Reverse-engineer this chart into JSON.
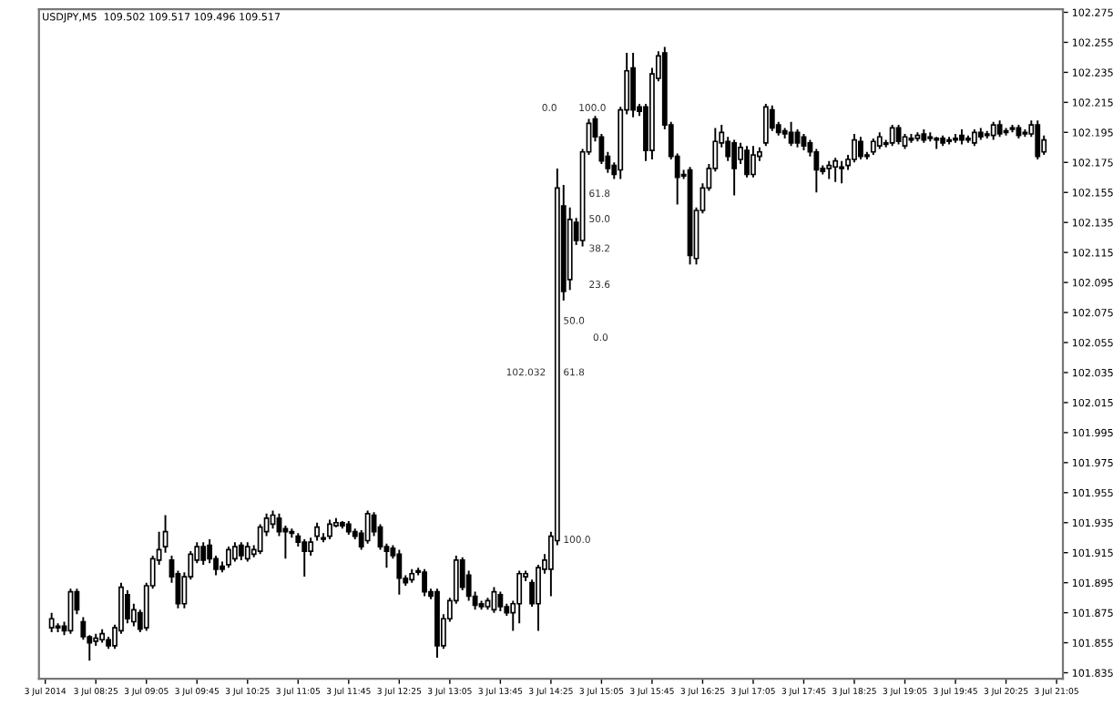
{
  "chart_data": {
    "type": "candlestick",
    "title": "USDJPY,M5  109.502 109.517 109.496 109.517",
    "x": [
      "2014-07-03T07:50",
      "2014-07-03T07:55",
      "2014-07-03T08:00",
      "2014-07-03T08:05",
      "2014-07-03T08:10",
      "2014-07-03T08:15",
      "2014-07-03T08:20",
      "2014-07-03T08:25",
      "2014-07-03T08:30",
      "2014-07-03T08:35",
      "2014-07-03T08:40",
      "2014-07-03T08:45",
      "2014-07-03T08:50",
      "2014-07-03T08:55",
      "2014-07-03T09:00",
      "2014-07-03T09:05",
      "2014-07-03T09:10",
      "2014-07-03T09:15",
      "2014-07-03T09:20",
      "2014-07-03T09:25",
      "2014-07-03T09:30",
      "2014-07-03T09:35",
      "2014-07-03T09:40",
      "2014-07-03T09:45",
      "2014-07-03T09:50",
      "2014-07-03T09:55",
      "2014-07-03T10:00",
      "2014-07-03T10:05",
      "2014-07-03T10:10",
      "2014-07-03T10:15",
      "2014-07-03T10:20",
      "2014-07-03T10:25",
      "2014-07-03T10:30",
      "2014-07-03T10:35",
      "2014-07-03T10:40",
      "2014-07-03T10:45",
      "2014-07-03T10:50",
      "2014-07-03T10:55",
      "2014-07-03T11:00",
      "2014-07-03T11:05",
      "2014-07-03T11:10",
      "2014-07-03T11:15",
      "2014-07-03T11:20",
      "2014-07-03T11:25",
      "2014-07-03T11:30",
      "2014-07-03T11:35",
      "2014-07-03T11:40",
      "2014-07-03T11:45",
      "2014-07-03T11:50",
      "2014-07-03T11:55",
      "2014-07-03T12:00",
      "2014-07-03T12:05",
      "2014-07-03T12:10",
      "2014-07-03T12:15",
      "2014-07-03T12:20",
      "2014-07-03T12:25",
      "2014-07-03T12:30",
      "2014-07-03T12:35",
      "2014-07-03T12:40",
      "2014-07-03T12:45",
      "2014-07-03T12:50",
      "2014-07-03T12:55",
      "2014-07-03T13:00",
      "2014-07-03T13:05",
      "2014-07-03T13:10",
      "2014-07-03T13:15",
      "2014-07-03T13:20",
      "2014-07-03T13:25",
      "2014-07-03T13:30",
      "2014-07-03T13:35",
      "2014-07-03T13:40",
      "2014-07-03T13:45",
      "2014-07-03T13:50",
      "2014-07-03T13:55",
      "2014-07-03T14:00",
      "2014-07-03T14:05",
      "2014-07-03T14:10",
      "2014-07-03T14:15",
      "2014-07-03T14:20",
      "2014-07-03T14:25",
      "2014-07-03T14:30",
      "2014-07-03T14:35",
      "2014-07-03T14:40",
      "2014-07-03T14:45",
      "2014-07-03T14:50",
      "2014-07-03T14:55",
      "2014-07-03T15:00",
      "2014-07-03T15:05",
      "2014-07-03T15:10",
      "2014-07-03T15:15",
      "2014-07-03T15:20",
      "2014-07-03T15:25",
      "2014-07-03T15:30",
      "2014-07-03T15:35",
      "2014-07-03T15:40",
      "2014-07-03T15:45",
      "2014-07-03T15:50",
      "2014-07-03T15:55",
      "2014-07-03T16:00",
      "2014-07-03T16:05",
      "2014-07-03T16:10",
      "2014-07-03T16:15",
      "2014-07-03T16:20",
      "2014-07-03T16:25",
      "2014-07-03T16:30",
      "2014-07-03T16:35",
      "2014-07-03T16:40",
      "2014-07-03T16:45",
      "2014-07-03T16:50",
      "2014-07-03T16:55",
      "2014-07-03T17:00",
      "2014-07-03T17:05",
      "2014-07-03T17:10",
      "2014-07-03T17:15",
      "2014-07-03T17:20",
      "2014-07-03T17:25",
      "2014-07-03T17:30",
      "2014-07-03T17:35",
      "2014-07-03T17:40",
      "2014-07-03T17:45",
      "2014-07-03T17:50",
      "2014-07-03T17:55",
      "2014-07-03T18:00",
      "2014-07-03T18:05",
      "2014-07-03T18:10",
      "2014-07-03T18:15",
      "2014-07-03T18:20",
      "2014-07-03T18:25",
      "2014-07-03T18:30",
      "2014-07-03T18:35",
      "2014-07-03T18:40",
      "2014-07-03T18:45",
      "2014-07-03T18:50",
      "2014-07-03T18:55",
      "2014-07-03T19:00",
      "2014-07-03T19:05",
      "2014-07-03T19:10",
      "2014-07-03T19:15",
      "2014-07-03T19:20",
      "2014-07-03T19:25",
      "2014-07-03T19:30",
      "2014-07-03T19:35",
      "2014-07-03T19:40",
      "2014-07-03T19:45",
      "2014-07-03T19:50",
      "2014-07-03T19:55",
      "2014-07-03T20:00",
      "2014-07-03T20:05",
      "2014-07-03T20:10",
      "2014-07-03T20:15",
      "2014-07-03T20:20",
      "2014-07-03T20:25",
      "2014-07-03T20:30",
      "2014-07-03T20:35",
      "2014-07-03T20:40",
      "2014-07-03T20:45",
      "2014-07-03T20:50",
      "2014-07-03T20:55"
    ],
    "ohlc": [
      [
        101.865,
        101.875,
        101.862,
        101.871
      ],
      [
        101.865,
        101.868,
        101.862,
        101.866
      ],
      [
        101.866,
        101.869,
        101.86,
        101.863
      ],
      [
        101.863,
        101.891,
        101.861,
        101.889
      ],
      [
        101.889,
        101.891,
        101.874,
        101.877
      ],
      [
        101.869,
        101.872,
        101.857,
        101.859
      ],
      [
        101.859,
        101.86,
        101.843,
        101.855
      ],
      [
        101.856,
        101.861,
        101.853,
        101.858
      ],
      [
        101.857,
        101.864,
        101.855,
        101.861
      ],
      [
        101.857,
        101.859,
        101.851,
        101.853
      ],
      [
        101.853,
        101.867,
        101.851,
        101.865
      ],
      [
        101.863,
        101.895,
        101.861,
        101.892
      ],
      [
        101.887,
        101.89,
        101.868,
        101.871
      ],
      [
        101.869,
        101.881,
        101.866,
        101.877
      ],
      [
        101.875,
        101.877,
        101.862,
        101.864
      ],
      [
        101.865,
        101.895,
        101.863,
        101.893
      ],
      [
        101.893,
        101.913,
        101.891,
        101.911
      ],
      [
        101.91,
        101.929,
        101.907,
        101.917
      ],
      [
        101.919,
        101.94,
        101.915,
        101.929
      ],
      [
        101.91,
        101.913,
        101.895,
        101.899
      ],
      [
        101.901,
        101.903,
        101.878,
        101.881
      ],
      [
        101.881,
        101.902,
        101.878,
        101.899
      ],
      [
        101.899,
        101.916,
        101.897,
        101.914
      ],
      [
        101.91,
        101.922,
        101.908,
        101.919
      ],
      [
        101.919,
        101.922,
        101.907,
        101.91
      ],
      [
        101.92,
        101.924,
        101.908,
        101.911
      ],
      [
        101.911,
        101.913,
        101.9,
        101.904
      ],
      [
        101.906,
        101.909,
        101.902,
        101.904
      ],
      [
        101.907,
        101.919,
        101.905,
        101.917
      ],
      [
        101.911,
        101.922,
        101.909,
        101.919
      ],
      [
        101.92,
        101.922,
        101.91,
        101.913
      ],
      [
        101.911,
        101.922,
        101.909,
        101.919
      ],
      [
        101.914,
        101.92,
        101.912,
        101.917
      ],
      [
        101.916,
        101.934,
        101.914,
        101.932
      ],
      [
        101.929,
        101.941,
        101.926,
        101.938
      ],
      [
        101.934,
        101.943,
        101.931,
        101.94
      ],
      [
        101.938,
        101.941,
        101.926,
        101.929
      ],
      [
        101.931,
        101.933,
        101.911,
        101.929
      ],
      [
        101.929,
        101.931,
        101.925,
        101.928
      ],
      [
        101.926,
        101.928,
        101.919,
        101.922
      ],
      [
        101.922,
        101.924,
        101.899,
        101.916
      ],
      [
        101.916,
        101.925,
        101.913,
        101.922
      ],
      [
        101.926,
        101.935,
        101.923,
        101.932
      ],
      [
        101.925,
        101.928,
        101.922,
        101.924
      ],
      [
        101.926,
        101.937,
        101.924,
        101.934
      ],
      [
        101.933,
        101.938,
        101.932,
        101.935
      ],
      [
        101.935,
        101.936,
        101.931,
        101.933
      ],
      [
        101.934,
        101.936,
        101.927,
        101.929
      ],
      [
        101.929,
        101.931,
        101.924,
        101.926
      ],
      [
        101.928,
        101.93,
        101.917,
        101.919
      ],
      [
        101.923,
        101.943,
        101.921,
        101.941
      ],
      [
        101.94,
        101.942,
        101.926,
        101.929
      ],
      [
        101.932,
        101.934,
        101.917,
        101.919
      ],
      [
        101.919,
        101.921,
        101.905,
        101.916
      ],
      [
        101.918,
        101.92,
        101.911,
        101.913
      ],
      [
        101.914,
        101.917,
        101.887,
        101.898
      ],
      [
        101.898,
        101.9,
        101.893,
        101.895
      ],
      [
        101.897,
        101.904,
        101.895,
        101.901
      ],
      [
        101.902,
        101.905,
        101.9,
        101.903
      ],
      [
        101.902,
        101.904,
        101.886,
        101.889
      ],
      [
        101.889,
        101.891,
        101.884,
        101.886
      ],
      [
        101.889,
        101.891,
        101.845,
        101.853
      ],
      [
        101.853,
        101.874,
        101.851,
        101.871
      ],
      [
        101.871,
        101.885,
        101.869,
        101.883
      ],
      [
        101.883,
        101.913,
        101.881,
        101.91
      ],
      [
        101.91,
        101.912,
        101.89,
        101.892
      ],
      [
        101.9,
        101.903,
        101.883,
        101.886
      ],
      [
        101.886,
        101.889,
        101.877,
        101.88
      ],
      [
        101.881,
        101.883,
        101.877,
        101.879
      ],
      [
        101.879,
        101.885,
        101.877,
        101.883
      ],
      [
        101.877,
        101.892,
        101.875,
        101.889
      ],
      [
        101.887,
        101.889,
        101.876,
        101.879
      ],
      [
        101.879,
        101.881,
        101.873,
        101.875
      ],
      [
        101.875,
        101.883,
        101.863,
        101.881
      ],
      [
        101.881,
        101.903,
        101.868,
        101.901
      ],
      [
        101.899,
        101.903,
        101.896,
        101.901
      ],
      [
        101.895,
        101.897,
        101.879,
        101.881
      ],
      [
        101.881,
        101.907,
        101.863,
        101.905
      ],
      [
        101.904,
        101.914,
        101.901,
        101.91
      ],
      [
        101.904,
        101.929,
        101.886,
        101.926
      ],
      [
        101.923,
        102.171,
        101.92,
        102.158
      ],
      [
        102.146,
        102.16,
        102.083,
        102.089
      ],
      [
        102.097,
        102.145,
        102.09,
        102.137
      ],
      [
        102.135,
        102.138,
        102.12,
        102.123
      ],
      [
        102.123,
        102.184,
        102.119,
        102.182
      ],
      [
        102.182,
        102.204,
        102.18,
        102.201
      ],
      [
        102.204,
        102.206,
        102.189,
        102.192
      ],
      [
        102.192,
        102.194,
        102.174,
        102.176
      ],
      [
        102.179,
        102.182,
        102.168,
        102.171
      ],
      [
        102.173,
        102.175,
        102.164,
        102.167
      ],
      [
        102.17,
        102.212,
        102.164,
        102.21
      ],
      [
        102.21,
        102.248,
        102.207,
        102.236
      ],
      [
        102.238,
        102.248,
        102.205,
        102.21
      ],
      [
        102.212,
        102.214,
        102.206,
        102.209
      ],
      [
        102.212,
        102.214,
        102.176,
        102.183
      ],
      [
        102.183,
        102.238,
        102.177,
        102.234
      ],
      [
        102.231,
        102.249,
        102.229,
        102.246
      ],
      [
        102.248,
        102.252,
        102.197,
        102.2
      ],
      [
        102.2,
        102.202,
        102.177,
        102.179
      ],
      [
        102.179,
        102.181,
        102.147,
        102.165
      ],
      [
        102.167,
        102.17,
        102.164,
        102.166
      ],
      [
        102.17,
        102.172,
        102.107,
        102.113
      ],
      [
        102.111,
        102.145,
        102.107,
        102.143
      ],
      [
        102.143,
        102.161,
        102.141,
        102.158
      ],
      [
        102.158,
        102.174,
        102.156,
        102.171
      ],
      [
        102.171,
        102.198,
        102.169,
        102.189
      ],
      [
        102.188,
        102.2,
        102.185,
        102.195
      ],
      [
        102.189,
        102.192,
        102.176,
        102.179
      ],
      [
        102.188,
        102.19,
        102.153,
        102.171
      ],
      [
        102.177,
        102.188,
        102.174,
        102.185
      ],
      [
        102.183,
        102.186,
        102.165,
        102.167
      ],
      [
        102.167,
        102.186,
        102.165,
        102.18
      ],
      [
        102.179,
        102.185,
        102.176,
        102.182
      ],
      [
        102.188,
        102.214,
        102.186,
        102.212
      ],
      [
        102.21,
        102.213,
        102.196,
        102.198
      ],
      [
        102.2,
        102.202,
        102.193,
        102.195
      ],
      [
        102.196,
        102.198,
        102.191,
        102.194
      ],
      [
        102.195,
        102.202,
        102.186,
        102.188
      ],
      [
        102.195,
        102.197,
        102.185,
        102.188
      ],
      [
        102.192,
        102.194,
        102.183,
        102.186
      ],
      [
        102.188,
        102.19,
        102.179,
        102.182
      ],
      [
        102.182,
        102.184,
        102.155,
        102.17
      ],
      [
        102.171,
        102.173,
        102.167,
        102.169
      ],
      [
        102.171,
        102.176,
        102.164,
        102.173
      ],
      [
        102.172,
        102.178,
        102.162,
        102.176
      ],
      [
        102.172,
        102.176,
        102.161,
        102.171
      ],
      [
        102.173,
        102.18,
        102.17,
        102.177
      ],
      [
        102.177,
        102.194,
        102.175,
        102.19
      ],
      [
        102.189,
        102.192,
        102.177,
        102.179
      ],
      [
        102.18,
        102.182,
        102.177,
        102.179
      ],
      [
        102.182,
        102.191,
        102.18,
        102.189
      ],
      [
        102.186,
        102.195,
        102.184,
        102.192
      ],
      [
        102.188,
        102.19,
        102.185,
        102.187
      ],
      [
        102.188,
        102.2,
        102.186,
        102.198
      ],
      [
        102.198,
        102.2,
        102.187,
        102.189
      ],
      [
        102.186,
        102.194,
        102.184,
        102.192
      ],
      [
        102.19,
        102.194,
        102.188,
        102.191
      ],
      [
        102.191,
        102.195,
        102.189,
        102.193
      ],
      [
        102.194,
        102.197,
        102.188,
        102.19
      ],
      [
        102.191,
        102.195,
        102.189,
        102.192
      ],
      [
        102.191,
        102.192,
        102.184,
        102.19
      ],
      [
        102.191,
        102.193,
        102.186,
        102.188
      ],
      [
        102.189,
        102.192,
        102.187,
        102.19
      ],
      [
        102.19,
        102.194,
        102.188,
        102.191
      ],
      [
        102.193,
        102.197,
        102.187,
        102.19
      ],
      [
        102.19,
        102.193,
        102.188,
        102.191
      ],
      [
        102.188,
        102.197,
        102.186,
        102.195
      ],
      [
        102.195,
        102.198,
        102.19,
        102.192
      ],
      [
        102.193,
        102.196,
        102.191,
        102.194
      ],
      [
        102.193,
        102.202,
        102.19,
        102.2
      ],
      [
        102.2,
        102.203,
        102.192,
        102.194
      ],
      [
        102.195,
        102.198,
        102.193,
        102.196
      ],
      [
        102.197,
        102.2,
        102.195,
        102.198
      ],
      [
        102.198,
        102.2,
        102.191,
        102.193
      ],
      [
        102.194,
        102.197,
        102.192,
        102.195
      ],
      [
        102.194,
        102.203,
        102.192,
        102.2
      ],
      [
        102.2,
        102.203,
        102.177,
        102.179
      ],
      [
        102.182,
        102.193,
        102.18,
        102.19
      ]
    ],
    "xlim": [
      "2014-07-03T07:40",
      "2014-07-03T21:10"
    ],
    "xticks": [
      {
        "value": "2014-07-03T07:45",
        "label": "3 Jul 2014"
      },
      {
        "value": "2014-07-03T08:25",
        "label": "3 Jul 08:25"
      },
      {
        "value": "2014-07-03T09:05",
        "label": "3 Jul 09:05"
      },
      {
        "value": "2014-07-03T09:45",
        "label": "3 Jul 09:45"
      },
      {
        "value": "2014-07-03T10:25",
        "label": "3 Jul 10:25"
      },
      {
        "value": "2014-07-03T11:05",
        "label": "3 Jul 11:05"
      },
      {
        "value": "2014-07-03T11:45",
        "label": "3 Jul 11:45"
      },
      {
        "value": "2014-07-03T12:25",
        "label": "3 Jul 12:25"
      },
      {
        "value": "2014-07-03T13:05",
        "label": "3 Jul 13:05"
      },
      {
        "value": "2014-07-03T13:45",
        "label": "3 Jul 13:45"
      },
      {
        "value": "2014-07-03T14:25",
        "label": "3 Jul 14:25"
      },
      {
        "value": "2014-07-03T15:05",
        "label": "3 Jul 15:05"
      },
      {
        "value": "2014-07-03T15:45",
        "label": "3 Jul 15:45"
      },
      {
        "value": "2014-07-03T16:25",
        "label": "3 Jul 16:25"
      },
      {
        "value": "2014-07-03T17:05",
        "label": "3 Jul 17:05"
      },
      {
        "value": "2014-07-03T17:45",
        "label": "3 Jul 17:45"
      },
      {
        "value": "2014-07-03T18:25",
        "label": "3 Jul 18:25"
      },
      {
        "value": "2014-07-03T19:05",
        "label": "3 Jul 19:05"
      },
      {
        "value": "2014-07-03T19:45",
        "label": "3 Jul 19:45"
      },
      {
        "value": "2014-07-03T20:25",
        "label": "3 Jul 20:25"
      },
      {
        "value": "2014-07-03T21:05",
        "label": "3 Jul 21:05"
      }
    ],
    "ylim": [
      101.831,
      102.277
    ],
    "yticks": [
      101.835,
      101.855,
      101.875,
      101.895,
      101.915,
      101.935,
      101.955,
      101.975,
      101.995,
      102.015,
      102.035,
      102.055,
      102.075,
      102.095,
      102.115,
      102.135,
      102.155,
      102.175,
      102.195,
      102.215,
      102.235,
      102.255,
      102.275
    ],
    "grid": false,
    "annotations": [
      "0.0",
      "100.0",
      "61.8",
      "50.0",
      "38.2",
      "23.6",
      "0.0",
      "50.0",
      "61.8",
      "102.032",
      "100.0"
    ]
  }
}
